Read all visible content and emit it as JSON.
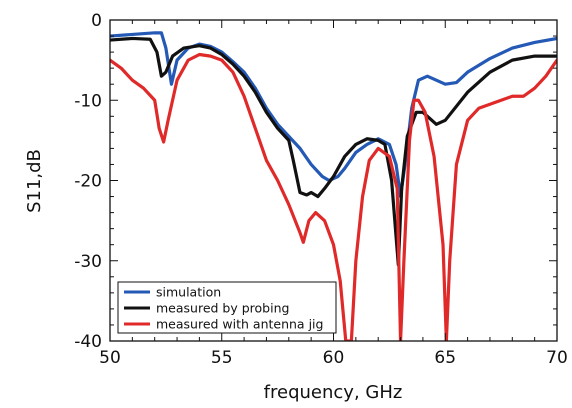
{
  "chart_data": {
    "type": "line",
    "xlabel": "frequency, GHz",
    "ylabel": "S11,dB",
    "xlim": [
      50,
      70
    ],
    "ylim": [
      -40,
      0
    ],
    "xticks": [
      50,
      55,
      60,
      65,
      70
    ],
    "yticks": [
      0,
      -10,
      -20,
      -30,
      -40
    ],
    "x_minor_step": 1,
    "y_minor_step": 2,
    "grid": false,
    "legend_position": "bottom-left",
    "series": [
      {
        "name": "simulation",
        "color": "#2459b5",
        "points": [
          [
            50,
            -2.0
          ],
          [
            51,
            -1.8
          ],
          [
            52,
            -1.6
          ],
          [
            52.3,
            -1.6
          ],
          [
            52.5,
            -3.5
          ],
          [
            52.75,
            -8.0
          ],
          [
            53.0,
            -5.0
          ],
          [
            53.5,
            -3.5
          ],
          [
            54,
            -3.0
          ],
          [
            54.5,
            -3.3
          ],
          [
            55,
            -4.0
          ],
          [
            55.5,
            -5.2
          ],
          [
            56,
            -6.5
          ],
          [
            56.5,
            -8.5
          ],
          [
            57,
            -11.0
          ],
          [
            57.5,
            -13.0
          ],
          [
            58,
            -14.5
          ],
          [
            58.5,
            -16.0
          ],
          [
            59,
            -18.0
          ],
          [
            59.5,
            -19.5
          ],
          [
            59.8,
            -20.0
          ],
          [
            60.2,
            -19.5
          ],
          [
            60.5,
            -18.5
          ],
          [
            61,
            -16.5
          ],
          [
            61.5,
            -15.5
          ],
          [
            62,
            -14.8
          ],
          [
            62.5,
            -15.5
          ],
          [
            62.8,
            -18.0
          ],
          [
            63.0,
            -22.0
          ],
          [
            63.2,
            -18.0
          ],
          [
            63.5,
            -11.0
          ],
          [
            63.8,
            -7.5
          ],
          [
            64.2,
            -7.0
          ],
          [
            64.6,
            -7.5
          ],
          [
            65,
            -8.0
          ],
          [
            65.5,
            -7.8
          ],
          [
            66,
            -6.5
          ],
          [
            67,
            -4.8
          ],
          [
            68,
            -3.5
          ],
          [
            69,
            -2.8
          ],
          [
            70,
            -2.3
          ]
        ]
      },
      {
        "name": "measured by probing",
        "color": "#111111",
        "points": [
          [
            50,
            -2.5
          ],
          [
            51,
            -2.3
          ],
          [
            51.8,
            -2.4
          ],
          [
            52.1,
            -4.0
          ],
          [
            52.3,
            -7.0
          ],
          [
            52.5,
            -6.5
          ],
          [
            52.8,
            -4.5
          ],
          [
            53.3,
            -3.5
          ],
          [
            54,
            -3.2
          ],
          [
            54.5,
            -3.5
          ],
          [
            55,
            -4.3
          ],
          [
            55.5,
            -5.5
          ],
          [
            56,
            -7.0
          ],
          [
            56.5,
            -9.0
          ],
          [
            57,
            -11.5
          ],
          [
            57.5,
            -13.5
          ],
          [
            58,
            -15.0
          ],
          [
            58.2,
            -17.5
          ],
          [
            58.5,
            -21.5
          ],
          [
            58.8,
            -21.8
          ],
          [
            59.0,
            -21.5
          ],
          [
            59.3,
            -22.0
          ],
          [
            59.6,
            -21.0
          ],
          [
            60,
            -19.5
          ],
          [
            60.5,
            -17.0
          ],
          [
            61,
            -15.5
          ],
          [
            61.5,
            -14.8
          ],
          [
            62,
            -15.0
          ],
          [
            62.3,
            -15.5
          ],
          [
            62.6,
            -20.0
          ],
          [
            62.9,
            -30.5
          ],
          [
            63.05,
            -21.0
          ],
          [
            63.3,
            -14.5
          ],
          [
            63.7,
            -11.5
          ],
          [
            64.0,
            -11.5
          ],
          [
            64.6,
            -13.0
          ],
          [
            65,
            -12.5
          ],
          [
            66,
            -9.0
          ],
          [
            67,
            -6.5
          ],
          [
            68,
            -5.0
          ],
          [
            69,
            -4.5
          ],
          [
            70,
            -4.5
          ]
        ]
      },
      {
        "name": "measured with antenna jig",
        "color": "#e02a2a",
        "points": [
          [
            50,
            -5.0
          ],
          [
            50.5,
            -6.0
          ],
          [
            51,
            -7.5
          ],
          [
            51.5,
            -8.5
          ],
          [
            52,
            -10.0
          ],
          [
            52.2,
            -13.5
          ],
          [
            52.4,
            -15.2
          ],
          [
            52.6,
            -12.5
          ],
          [
            53,
            -7.5
          ],
          [
            53.5,
            -5.0
          ],
          [
            54,
            -4.3
          ],
          [
            54.5,
            -4.5
          ],
          [
            55,
            -5.0
          ],
          [
            55.5,
            -6.5
          ],
          [
            56,
            -9.5
          ],
          [
            56.5,
            -13.5
          ],
          [
            57,
            -17.5
          ],
          [
            57.5,
            -20.0
          ],
          [
            58,
            -23.0
          ],
          [
            58.5,
            -26.5
          ],
          [
            58.65,
            -27.7
          ],
          [
            58.9,
            -25.0
          ],
          [
            59.2,
            -24.0
          ],
          [
            59.6,
            -25.0
          ],
          [
            60,
            -28.0
          ],
          [
            60.3,
            -32.5
          ],
          [
            60.55,
            -40.0
          ],
          [
            60.8,
            -40.0
          ],
          [
            61.0,
            -30.0
          ],
          [
            61.3,
            -22.0
          ],
          [
            61.6,
            -17.5
          ],
          [
            62,
            -16.0
          ],
          [
            62.5,
            -17.0
          ],
          [
            62.85,
            -21.0
          ],
          [
            63.0,
            -40.0
          ],
          [
            63.15,
            -30.0
          ],
          [
            63.4,
            -15.0
          ],
          [
            63.6,
            -10.0
          ],
          [
            63.8,
            -10.0
          ],
          [
            64.1,
            -11.5
          ],
          [
            64.5,
            -17.0
          ],
          [
            64.9,
            -28.0
          ],
          [
            65.05,
            -40.0
          ],
          [
            65.2,
            -30.0
          ],
          [
            65.5,
            -18.0
          ],
          [
            66,
            -12.5
          ],
          [
            66.5,
            -11.0
          ],
          [
            67,
            -10.5
          ],
          [
            67.5,
            -10.0
          ],
          [
            68,
            -9.5
          ],
          [
            68.5,
            -9.5
          ],
          [
            69,
            -8.5
          ],
          [
            69.5,
            -7.0
          ],
          [
            70,
            -5.0
          ]
        ]
      }
    ]
  }
}
